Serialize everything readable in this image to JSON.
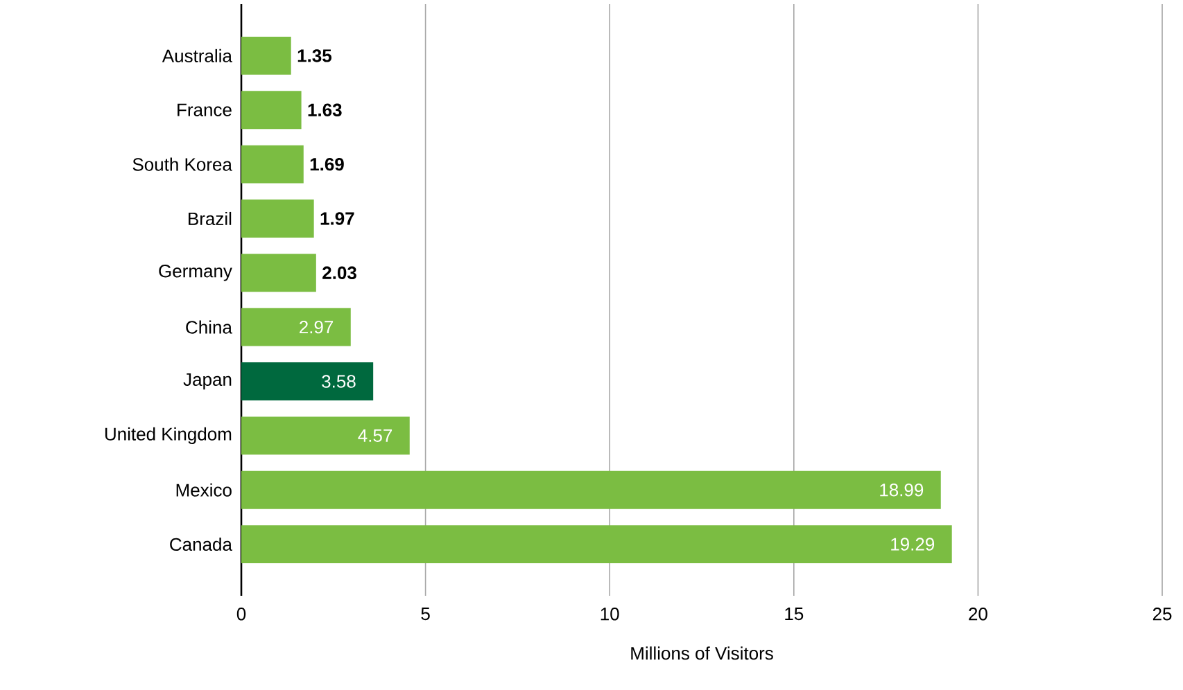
{
  "chart_data": {
    "type": "bar",
    "orientation": "horizontal",
    "xlabel": "Millions of Visitors",
    "categories": [
      "Australia",
      "France",
      "South Korea",
      "Brazil",
      "Germany",
      "China",
      "Japan",
      "United Kingdom",
      "Mexico",
      "Canada"
    ],
    "values": [
      1.35,
      1.63,
      1.69,
      1.97,
      2.03,
      2.97,
      3.58,
      4.57,
      18.99,
      19.29
    ],
    "colors": [
      "#7bbd42",
      "#7bbd42",
      "#7bbd42",
      "#7bbd42",
      "#7bbd42",
      "#7bbd42",
      "#00693e",
      "#7bbd42",
      "#7bbd42",
      "#7bbd42"
    ],
    "xlim": [
      0,
      25
    ],
    "xticks": [
      0,
      5,
      10,
      15,
      20,
      25
    ],
    "grid": "x",
    "data_labels": true
  }
}
